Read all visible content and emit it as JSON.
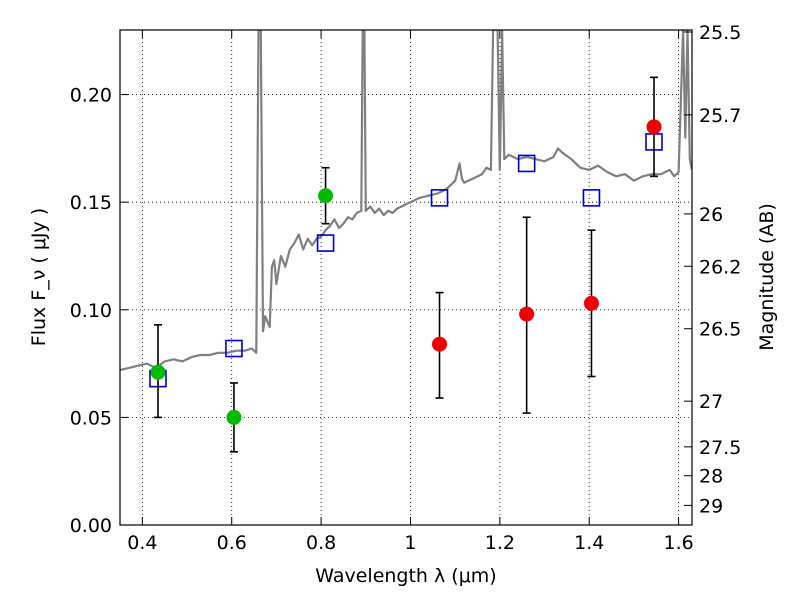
{
  "chart_data": {
    "type": "scatter",
    "xlabel": "Wavelength  λ (μm)",
    "ylabel": "Flux  F_ν  ( μJy )",
    "y2label": "Magnitude (AB)",
    "xlim": [
      0.35,
      1.63
    ],
    "ylim": [
      0.0,
      0.23
    ],
    "grid": true,
    "x_ticks": [
      {
        "value": 0.4,
        "label": "0.4"
      },
      {
        "value": 0.6,
        "label": "0.6"
      },
      {
        "value": 0.8,
        "label": "0.8"
      },
      {
        "value": 1.0,
        "label": "1"
      },
      {
        "value": 1.2,
        "label": "1.2"
      },
      {
        "value": 1.4,
        "label": "1.4"
      },
      {
        "value": 1.6,
        "label": "1.6"
      }
    ],
    "y_ticks": [
      {
        "value": 0.0,
        "label": "0.00"
      },
      {
        "value": 0.05,
        "label": "0.05"
      },
      {
        "value": 0.1,
        "label": "0.10"
      },
      {
        "value": 0.15,
        "label": "0.15"
      },
      {
        "value": 0.2,
        "label": "0.20"
      }
    ],
    "mag_ticks": [
      {
        "value": 25.5,
        "label": "25.5"
      },
      {
        "value": 25.7,
        "label": "25.7"
      },
      {
        "value": 26.0,
        "label": "26"
      },
      {
        "value": 26.2,
        "label": "26.2"
      },
      {
        "value": 26.5,
        "label": "26.5"
      },
      {
        "value": 27.0,
        "label": "27"
      },
      {
        "value": 27.5,
        "label": "27.5"
      },
      {
        "value": 28.0,
        "label": "28"
      },
      {
        "value": 29.0,
        "label": "29"
      }
    ],
    "series": [
      {
        "kind": "line",
        "color": "#808080",
        "points": [
          [
            0.35,
            0.072
          ],
          [
            0.37,
            0.073
          ],
          [
            0.39,
            0.074
          ],
          [
            0.41,
            0.075
          ],
          [
            0.43,
            0.073
          ],
          [
            0.45,
            0.076
          ],
          [
            0.47,
            0.077
          ],
          [
            0.49,
            0.076
          ],
          [
            0.51,
            0.078
          ],
          [
            0.53,
            0.079
          ],
          [
            0.55,
            0.079
          ],
          [
            0.57,
            0.08
          ],
          [
            0.59,
            0.08
          ],
          [
            0.61,
            0.081
          ],
          [
            0.63,
            0.081
          ],
          [
            0.645,
            0.082
          ],
          [
            0.655,
            0.08
          ],
          [
            0.66,
            0.23
          ],
          [
            0.665,
            0.23
          ],
          [
            0.67,
            0.09
          ],
          [
            0.675,
            0.097
          ],
          [
            0.685,
            0.092
          ],
          [
            0.69,
            0.12
          ],
          [
            0.695,
            0.123
          ],
          [
            0.7,
            0.112
          ],
          [
            0.71,
            0.125
          ],
          [
            0.72,
            0.12
          ],
          [
            0.73,
            0.128
          ],
          [
            0.74,
            0.131
          ],
          [
            0.75,
            0.135
          ],
          [
            0.76,
            0.128
          ],
          [
            0.77,
            0.133
          ],
          [
            0.78,
            0.13
          ],
          [
            0.79,
            0.133
          ],
          [
            0.8,
            0.134
          ],
          [
            0.81,
            0.137
          ],
          [
            0.82,
            0.139
          ],
          [
            0.83,
            0.142
          ],
          [
            0.84,
            0.138
          ],
          [
            0.85,
            0.14
          ],
          [
            0.86,
            0.143
          ],
          [
            0.87,
            0.142
          ],
          [
            0.88,
            0.145
          ],
          [
            0.89,
            0.146
          ],
          [
            0.893,
            0.23
          ],
          [
            0.897,
            0.23
          ],
          [
            0.9,
            0.146
          ],
          [
            0.91,
            0.148
          ],
          [
            0.92,
            0.145
          ],
          [
            0.93,
            0.147
          ],
          [
            0.94,
            0.144
          ],
          [
            0.95,
            0.146
          ],
          [
            0.96,
            0.145
          ],
          [
            0.97,
            0.147
          ],
          [
            0.98,
            0.148
          ],
          [
            0.99,
            0.149
          ],
          [
            1.0,
            0.15
          ],
          [
            1.02,
            0.152
          ],
          [
            1.04,
            0.153
          ],
          [
            1.06,
            0.154
          ],
          [
            1.08,
            0.156
          ],
          [
            1.09,
            0.158
          ],
          [
            1.1,
            0.16
          ],
          [
            1.11,
            0.168
          ],
          [
            1.115,
            0.161
          ],
          [
            1.12,
            0.159
          ],
          [
            1.14,
            0.161
          ],
          [
            1.16,
            0.163
          ],
          [
            1.17,
            0.166
          ],
          [
            1.18,
            0.165
          ],
          [
            1.185,
            0.23
          ],
          [
            1.195,
            0.23
          ],
          [
            1.2,
            0.165
          ],
          [
            1.205,
            0.23
          ],
          [
            1.21,
            0.17
          ],
          [
            1.22,
            0.172
          ],
          [
            1.24,
            0.17
          ],
          [
            1.26,
            0.171
          ],
          [
            1.28,
            0.17
          ],
          [
            1.3,
            0.169
          ],
          [
            1.32,
            0.171
          ],
          [
            1.33,
            0.175
          ],
          [
            1.34,
            0.173
          ],
          [
            1.36,
            0.17
          ],
          [
            1.37,
            0.168
          ],
          [
            1.38,
            0.166
          ],
          [
            1.4,
            0.165
          ],
          [
            1.42,
            0.167
          ],
          [
            1.44,
            0.164
          ],
          [
            1.46,
            0.162
          ],
          [
            1.48,
            0.163
          ],
          [
            1.5,
            0.16
          ],
          [
            1.52,
            0.162
          ],
          [
            1.54,
            0.163
          ],
          [
            1.56,
            0.163
          ],
          [
            1.58,
            0.165
          ],
          [
            1.59,
            0.162
          ],
          [
            1.6,
            0.164
          ],
          [
            1.61,
            0.23
          ],
          [
            1.615,
            0.18
          ],
          [
            1.62,
            0.23
          ],
          [
            1.625,
            0.17
          ],
          [
            1.63,
            0.165
          ]
        ]
      },
      {
        "kind": "squares",
        "color": "#0000cc",
        "points": [
          [
            0.435,
            0.068
          ],
          [
            0.605,
            0.082
          ],
          [
            0.81,
            0.131
          ],
          [
            1.065,
            0.152
          ],
          [
            1.26,
            0.168
          ],
          [
            1.405,
            0.152
          ],
          [
            1.545,
            0.178
          ]
        ]
      },
      {
        "kind": "points",
        "color": "#00bb00",
        "points": [
          {
            "x": 0.435,
            "y": 0.071,
            "lo": 0.05,
            "hi": 0.093
          },
          {
            "x": 0.605,
            "y": 0.05,
            "lo": 0.034,
            "hi": 0.066
          },
          {
            "x": 0.81,
            "y": 0.153,
            "lo": 0.14,
            "hi": 0.166
          }
        ]
      },
      {
        "kind": "points",
        "color": "#ee0000",
        "points": [
          {
            "x": 1.065,
            "y": 0.084,
            "lo": 0.059,
            "hi": 0.108
          },
          {
            "x": 1.26,
            "y": 0.098,
            "lo": 0.052,
            "hi": 0.143
          },
          {
            "x": 1.405,
            "y": 0.103,
            "lo": 0.069,
            "hi": 0.137
          },
          {
            "x": 1.545,
            "y": 0.185,
            "lo": 0.162,
            "hi": 0.208
          }
        ]
      }
    ]
  }
}
